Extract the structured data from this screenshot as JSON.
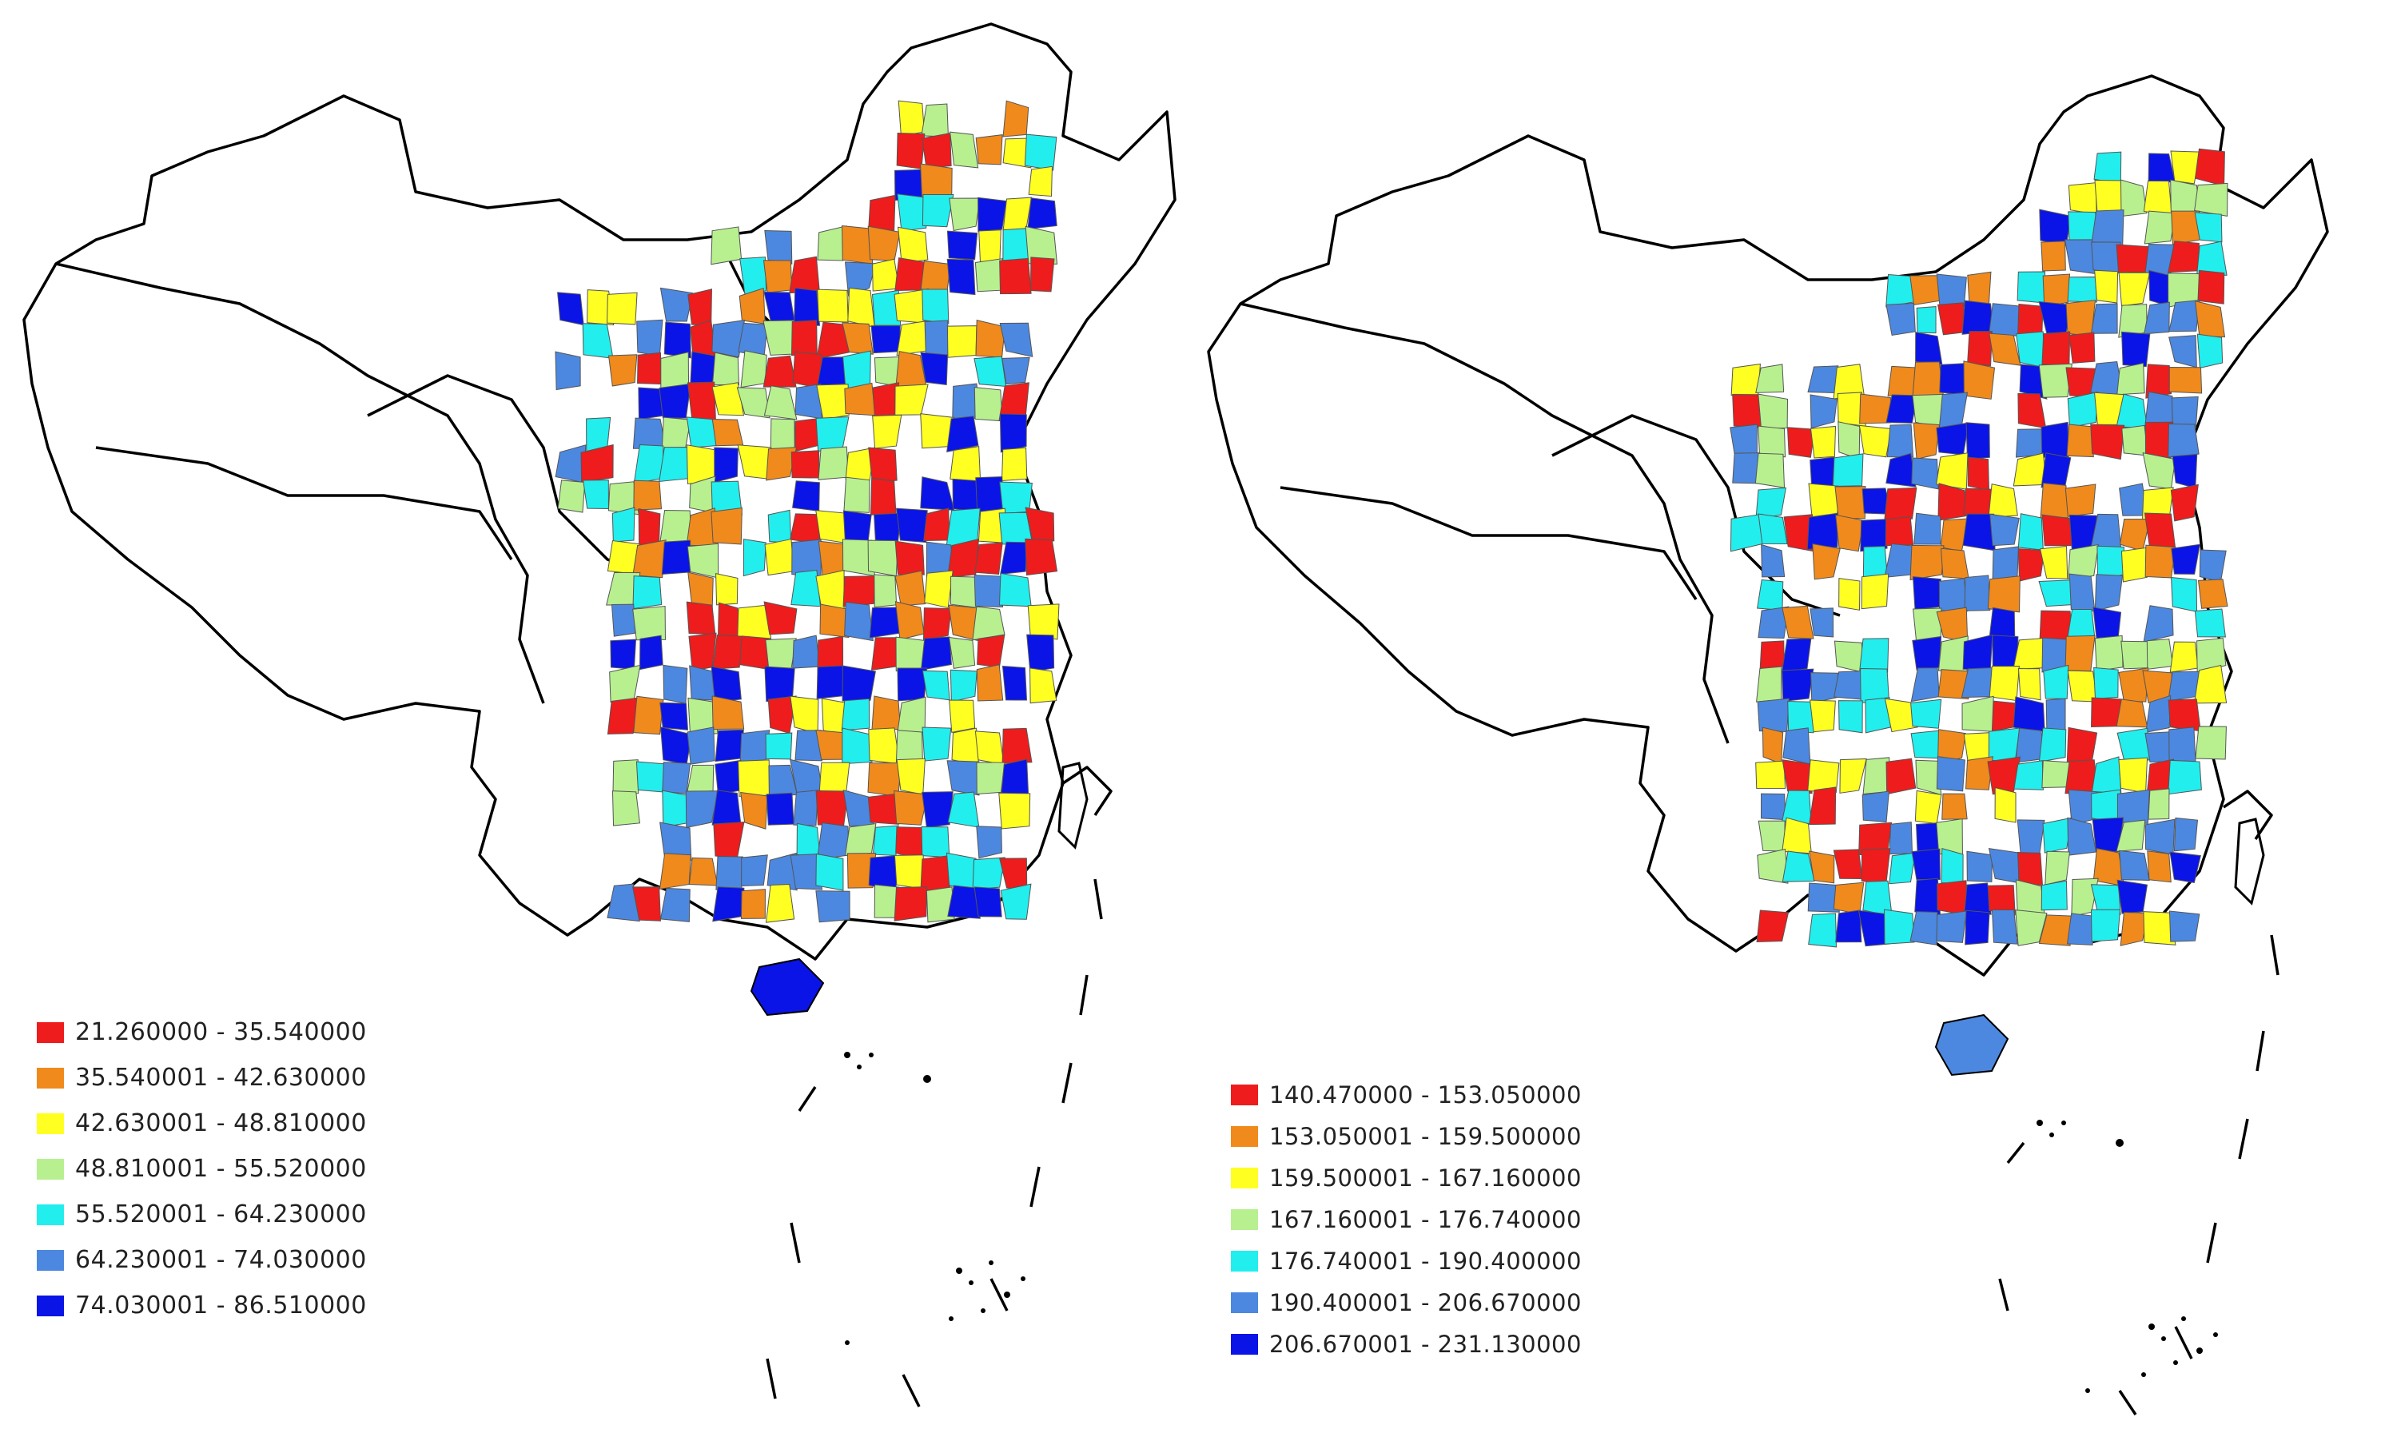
{
  "maps": [
    {
      "id": "left",
      "palette": [
        "#ee1c1c",
        "#f08a1c",
        "#ffff22",
        "#b8f090",
        "#22eeee",
        "#4c88e0",
        "#0a14e6"
      ],
      "legend": [
        {
          "label": "21.260000 - 35.540000",
          "color": "#ee1c1c"
        },
        {
          "label": "35.540001 - 42.630000",
          "color": "#f08a1c"
        },
        {
          "label": "42.630001 - 48.810000",
          "color": "#ffff22"
        },
        {
          "label": "48.810001 - 55.520000",
          "color": "#b8f090"
        },
        {
          "label": "55.520001 - 64.230000",
          "color": "#22eeee"
        },
        {
          "label": "64.230001 - 74.030000",
          "color": "#4c88e0"
        },
        {
          "label": "74.030001 - 86.510000",
          "color": "#0a14e6"
        }
      ]
    },
    {
      "id": "right",
      "palette": [
        "#ee1c1c",
        "#f08a1c",
        "#ffff22",
        "#b8f090",
        "#22eeee",
        "#4c88e0",
        "#0a14e6"
      ],
      "legend": [
        {
          "label": "140.470000 - 153.050000",
          "color": "#ee1c1c"
        },
        {
          "label": "153.050001 - 159.500000",
          "color": "#f08a1c"
        },
        {
          "label": "159.500001 - 167.160000",
          "color": "#ffff22"
        },
        {
          "label": "167.160001 - 176.740000",
          "color": "#b8f090"
        },
        {
          "label": "176.740001 - 190.400000",
          "color": "#22eeee"
        },
        {
          "label": "190.400001 - 206.670000",
          "color": "#4c88e0"
        },
        {
          "label": "206.670001 - 231.130000",
          "color": "#0a14e6"
        }
      ]
    }
  ]
}
